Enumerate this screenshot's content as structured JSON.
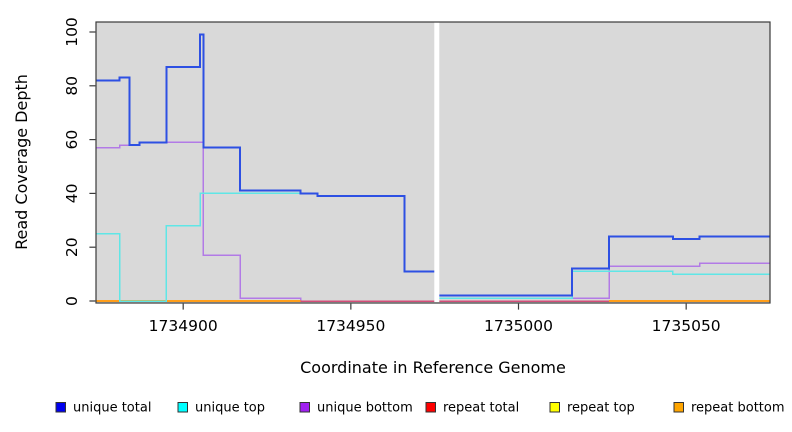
{
  "chart_data": {
    "type": "line",
    "subtype": "step-coverage",
    "title": "",
    "xlabel": "Coordinate in Reference Genome",
    "ylabel": "Read Coverage Depth",
    "x_range": [
      1734874,
      1735075
    ],
    "ylim": [
      0,
      100
    ],
    "x_ticks": [
      1734900,
      1734950,
      1735000,
      1735050
    ],
    "y_ticks": [
      0,
      20,
      40,
      60,
      80,
      100
    ],
    "grid": false,
    "plot_background": "#d9d9d9",
    "no_data_band": {
      "x_start": 1734974.9,
      "x_end": 1734976.4
    },
    "series": [
      {
        "name": "unique-bottom",
        "label": "unique bottom",
        "line_color": "#b27ae6",
        "width": 1.5,
        "steps": [
          [
            1734874,
            57
          ],
          [
            1734881,
            58
          ],
          [
            1734887,
            59
          ],
          [
            1734906,
            17
          ],
          [
            1734917,
            1
          ],
          [
            1734935,
            0
          ],
          [
            1734976,
            1
          ],
          [
            1735027,
            13
          ],
          [
            1735054,
            14
          ]
        ]
      },
      {
        "name": "repeat-top",
        "label": "repeat top",
        "line_color": "#ffff00",
        "width": 1.5,
        "steps": [
          [
            1734874,
            0
          ]
        ]
      },
      {
        "name": "repeat-total",
        "label": "repeat total",
        "line_color": "#d44d78",
        "width": 1.5,
        "steps": [
          [
            1734874,
            0
          ]
        ]
      },
      {
        "name": "repeat-bottom",
        "label": "repeat bottom",
        "line_color": "#ff9e1b",
        "width": 1.8,
        "steps": [
          [
            1734874,
            0
          ],
          [
            1734935,
            null
          ],
          [
            1735027,
            0
          ]
        ]
      },
      {
        "name": "unique-top",
        "label": "unique top",
        "line_color": "#5fe6e6",
        "width": 1.5,
        "steps": [
          [
            1734874,
            25
          ],
          [
            1734881,
            0
          ],
          [
            1734895,
            28
          ],
          [
            1734905,
            40
          ],
          [
            1734940,
            39
          ],
          [
            1734966,
            11
          ],
          [
            1734976,
            1
          ],
          [
            1735016,
            11
          ],
          [
            1735046,
            10
          ]
        ]
      },
      {
        "name": "unique-total",
        "label": "unique total",
        "line_color": "#2d50e3",
        "width": 2,
        "steps": [
          [
            1734874,
            82
          ],
          [
            1734881,
            83
          ],
          [
            1734884,
            58
          ],
          [
            1734887,
            59
          ],
          [
            1734895,
            87
          ],
          [
            1734905,
            99
          ],
          [
            1734906,
            57
          ],
          [
            1734917,
            41
          ],
          [
            1734935,
            40
          ],
          [
            1734940,
            39
          ],
          [
            1734966,
            11
          ],
          [
            1734976,
            2
          ],
          [
            1735016,
            12
          ],
          [
            1735027,
            24
          ],
          [
            1735046,
            23
          ],
          [
            1735054,
            24
          ]
        ]
      }
    ],
    "legend": {
      "position": "bottom",
      "items": [
        {
          "label": "unique total",
          "swatch_color": "#0000ee"
        },
        {
          "label": "unique top",
          "swatch_color": "#00ffff"
        },
        {
          "label": "unique bottom",
          "swatch_color": "#a020f0"
        },
        {
          "label": "repeat total",
          "swatch_color": "#ff0000"
        },
        {
          "label": "repeat top",
          "swatch_color": "#ffff00"
        },
        {
          "label": "repeat bottom",
          "swatch_color": "#ffa500"
        }
      ]
    }
  }
}
